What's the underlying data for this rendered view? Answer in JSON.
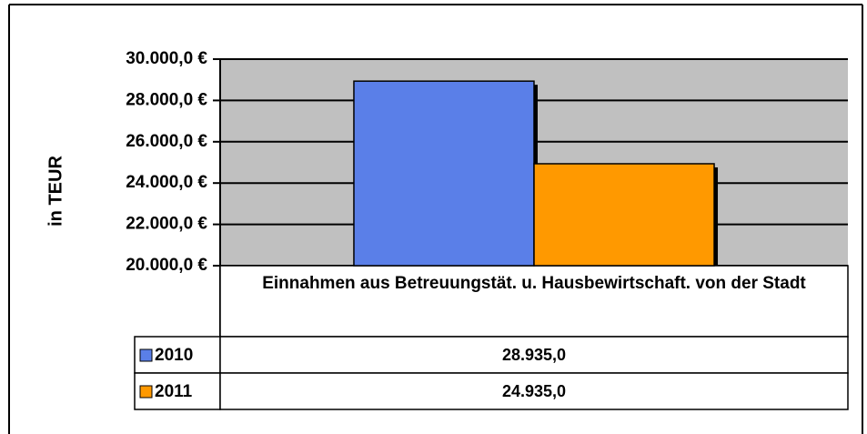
{
  "chart_data": {
    "type": "bar",
    "y_label": "in TEUR",
    "categories": [
      "Einnahmen aus Betreuungstät. u. Hausbewirtschaft. von der Stadt"
    ],
    "series": [
      {
        "name": "2010",
        "color": "#5a7fe8",
        "values": [
          28935
        ],
        "value_labels": [
          "28.935,0"
        ]
      },
      {
        "name": "2011",
        "color": "#ff9900",
        "values": [
          24935
        ],
        "value_labels": [
          "24.935,0"
        ]
      }
    ],
    "ylim": [
      20000,
      30000
    ],
    "yticks": [
      {
        "value": 20000,
        "label": "20.000,0 €"
      },
      {
        "value": 22000,
        "label": "22.000,0 €"
      },
      {
        "value": 24000,
        "label": "24.000,0 €"
      },
      {
        "value": 26000,
        "label": "26.000,0 €"
      },
      {
        "value": 28000,
        "label": "28.000,0 €"
      },
      {
        "value": 30000,
        "label": "30.000,0 €"
      }
    ],
    "grid": true
  }
}
